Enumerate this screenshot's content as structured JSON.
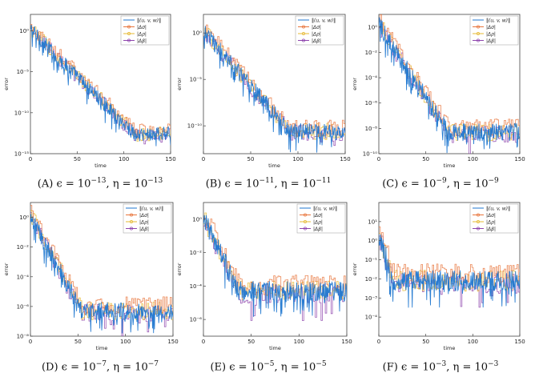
{
  "figure": {
    "captions": [
      {
        "label": "(A)",
        "eps": "10",
        "eps_exp": "−13",
        "eta": "10",
        "eta_exp": "−13"
      },
      {
        "label": "(B)",
        "eps": "10",
        "eps_exp": "−11",
        "eta": "10",
        "eta_exp": "−11"
      },
      {
        "label": "(C)",
        "eps": "10",
        "eps_exp": "−9",
        "eta": "10",
        "eta_exp": "−9"
      },
      {
        "label": "(D)",
        "eps": "10",
        "eps_exp": "−7",
        "eta": "10",
        "eta_exp": "−7"
      },
      {
        "label": "(E)",
        "eps": "10",
        "eps_exp": "−5",
        "eta": "10",
        "eta_exp": "−5"
      },
      {
        "label": "(F)",
        "eps": "10",
        "eps_exp": "−3",
        "eta": "10",
        "eta_exp": "−3"
      }
    ],
    "symbols": {
      "epsilon": "ϵ",
      "eta": "η",
      "equals": " = ",
      "comma": ", "
    }
  },
  "colors": {
    "uvw": "#1f77d0",
    "dsigma": "#e8743b",
    "drho": "#e6b830",
    "dbeta": "#8e44ad",
    "axis": "#444444",
    "grid": "#e6e6e6"
  },
  "chart_data": [
    {
      "type": "line",
      "panel": "A",
      "xlabel": "time",
      "ylabel": "error",
      "yscale": "log",
      "xlim": [
        0,
        150
      ],
      "ylim": [
        1e-15,
        100.0
      ],
      "xticks": [
        0,
        50,
        100,
        150
      ],
      "yticks": [
        1e-15,
        1e-10,
        1e-05,
        1.0
      ],
      "ytick_labels": [
        "10⁻¹⁵",
        "10⁻¹⁰",
        "10⁻⁵",
        "10⁰"
      ],
      "legend": {
        "position": "top-right",
        "entries": [
          "‖(u, v, w)‖",
          "|Δσ|",
          "|Δρ|",
          "|Δβ|"
        ]
      },
      "model": {
        "start_exp": 0.2,
        "decay_per_unit": 0.115,
        "floor_exp": -12.6,
        "noise_exp": 0.9
      }
    },
    {
      "type": "line",
      "panel": "B",
      "xlabel": "time",
      "ylabel": "error",
      "yscale": "log",
      "xlim": [
        0,
        150
      ],
      "ylim": [
        1e-13,
        100.0
      ],
      "xticks": [
        0,
        50,
        100,
        150
      ],
      "yticks": [
        1e-10,
        1e-05,
        1.0
      ],
      "ytick_labels": [
        "10⁻¹⁰",
        "10⁻⁵",
        "10⁰"
      ],
      "legend": {
        "position": "top-right",
        "entries": [
          "‖(u, v, w)‖",
          "|Δσ|",
          "|Δρ|",
          "|Δβ|"
        ]
      },
      "model": {
        "start_exp": 0.2,
        "decay_per_unit": 0.118,
        "floor_exp": -10.6,
        "noise_exp": 0.9
      }
    },
    {
      "type": "line",
      "panel": "C",
      "xlabel": "time",
      "ylabel": "error",
      "yscale": "log",
      "xlim": [
        0,
        150
      ],
      "ylim": [
        1e-10,
        10.0
      ],
      "xticks": [
        0,
        50,
        100,
        150
      ],
      "yticks": [
        1e-10,
        1e-08,
        1e-06,
        0.0001,
        0.01,
        1.0
      ],
      "ytick_labels": [
        "10⁻¹⁰",
        "10⁻⁸",
        "10⁻⁶",
        "10⁻⁴",
        "10⁻²",
        "10⁰"
      ],
      "legend": {
        "position": "top-right",
        "entries": [
          "‖(u, v, w)‖",
          "|Δσ|",
          "|Δρ|",
          "|Δβ|"
        ]
      },
      "model": {
        "start_exp": 0.2,
        "decay_per_unit": 0.115,
        "floor_exp": -8.3,
        "noise_exp": 0.7
      }
    },
    {
      "type": "line",
      "panel": "D",
      "xlabel": "time",
      "ylabel": "error",
      "yscale": "log",
      "xlim": [
        0,
        150
      ],
      "ylim": [
        1e-08,
        10.0
      ],
      "xticks": [
        0,
        50,
        100,
        150
      ],
      "yticks": [
        1e-08,
        1e-06,
        0.0001,
        0.01,
        1.0
      ],
      "ytick_labels": [
        "10⁻⁸",
        "10⁻⁶",
        "10⁻⁴",
        "10⁻²",
        "10⁰"
      ],
      "legend": {
        "position": "top-right",
        "entries": [
          "‖(u, v, w)‖",
          "|Δσ|",
          "|Δρ|",
          "|Δβ|"
        ]
      },
      "model": {
        "start_exp": 0.1,
        "decay_per_unit": 0.12,
        "floor_exp": -6.3,
        "noise_exp": 0.6
      }
    },
    {
      "type": "line",
      "panel": "E",
      "xlabel": "time",
      "ylabel": "error",
      "yscale": "log",
      "xlim": [
        0,
        150
      ],
      "ylim": [
        1e-07,
        10.0
      ],
      "xticks": [
        0,
        50,
        100,
        150
      ],
      "yticks": [
        1e-06,
        0.0001,
        0.01,
        1.0
      ],
      "ytick_labels": [
        "10⁻⁶",
        "10⁻⁴",
        "10⁻²",
        "10⁰"
      ],
      "legend": {
        "position": "top-right",
        "entries": [
          "‖(u, v, w)‖",
          "|Δσ|",
          "|Δρ|",
          "|Δβ|"
        ]
      },
      "model": {
        "start_exp": 0.1,
        "decay_per_unit": 0.12,
        "floor_exp": -4.3,
        "noise_exp": 0.6
      }
    },
    {
      "type": "line",
      "panel": "F",
      "xlabel": "time",
      "ylabel": "error",
      "yscale": "log",
      "xlim": [
        0,
        150
      ],
      "ylim": [
        1e-05,
        100.0
      ],
      "xticks": [
        0,
        50,
        100,
        150
      ],
      "yticks": [
        0.0001,
        0.001,
        0.01,
        0.1,
        1.0,
        10.0
      ],
      "ytick_labels": [
        "10⁻⁴",
        "10⁻³",
        "10⁻²",
        "10⁻¹",
        "10⁰",
        "10¹"
      ],
      "legend": {
        "position": "top-right",
        "entries": [
          "‖(u, v, w)‖",
          "|Δσ|",
          "|Δρ|",
          "|Δβ|"
        ]
      },
      "model": {
        "start_exp": 0.3,
        "decay_per_unit": 0.15,
        "floor_exp": -2.1,
        "noise_exp": 0.55
      }
    }
  ]
}
